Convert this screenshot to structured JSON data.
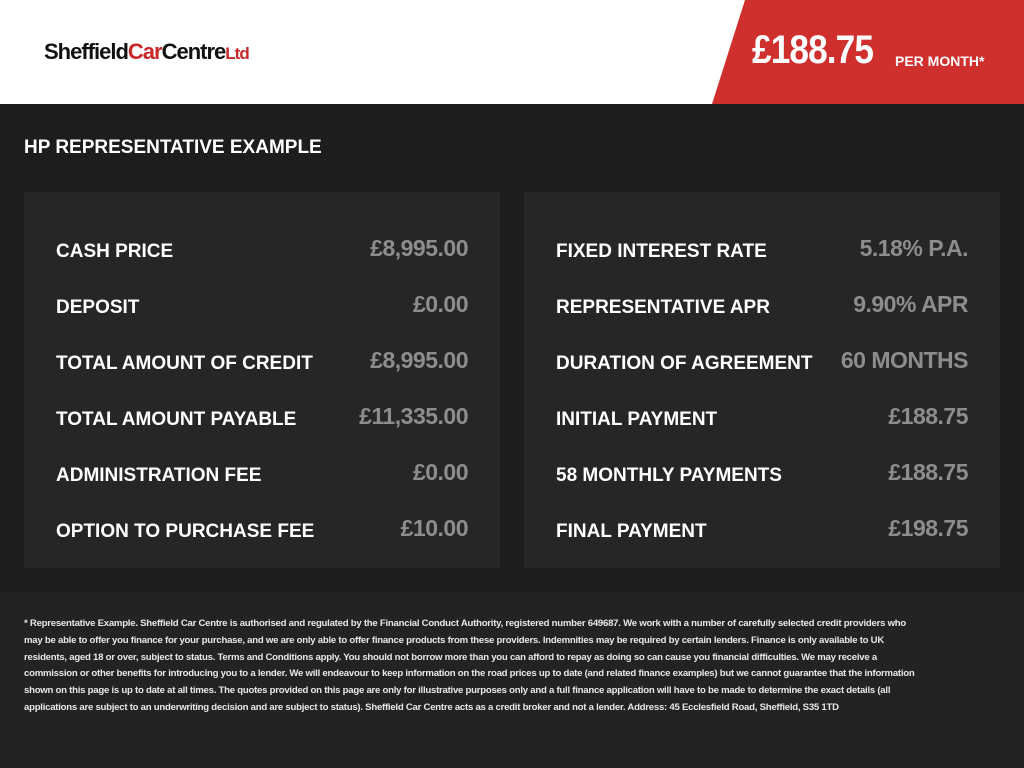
{
  "header": {
    "logo": {
      "part1": "Sheffield",
      "part2": "Car",
      "part3": "Centre",
      "part4": "Ltd"
    },
    "price": "£188.75",
    "per_month": "PER MONTH*"
  },
  "colors": {
    "accent": "#cf2f2d",
    "background": "#1d1d1d",
    "panel": "#262626",
    "value": "#8d8d8d"
  },
  "title": "HP REPRESENTATIVE EXAMPLE",
  "left": [
    {
      "label": "CASH PRICE",
      "value": "£8,995.00"
    },
    {
      "label": "DEPOSIT",
      "value": "£0.00"
    },
    {
      "label": "TOTAL AMOUNT OF CREDIT",
      "value": "£8,995.00"
    },
    {
      "label": "TOTAL AMOUNT PAYABLE",
      "value": "£11,335.00"
    },
    {
      "label": "ADMINISTRATION FEE",
      "value": "£0.00"
    },
    {
      "label": "OPTION TO PURCHASE FEE",
      "value": "£10.00"
    }
  ],
  "right": [
    {
      "label": "FIXED INTEREST RATE",
      "value": "5.18% P.A."
    },
    {
      "label": "REPRESENTATIVE APR",
      "value": "9.90% APR"
    },
    {
      "label": "DURATION OF AGREEMENT",
      "value": "60 MONTHS"
    },
    {
      "label": "INITIAL PAYMENT",
      "value": "£188.75"
    },
    {
      "label": "58 MONTHLY PAYMENTS",
      "value": "£188.75"
    },
    {
      "label": "FINAL PAYMENT",
      "value": "£198.75"
    }
  ],
  "disclaimer": "* Representative Example. Sheffield Car Centre is authorised and regulated by the Financial Conduct Authority, registered number 649687. We work with a number of carefully selected credit providers who may be able to offer you finance for your purchase, and we are only able to offer finance products from these providers. Indemnities may be required by certain lenders. Finance is only available to UK residents, aged 18 or over, subject to status. Terms and Conditions apply. You should not borrow more than you can afford to repay as doing so can cause you financial difficulties. We may receive a commission or other benefits for introducing you to a lender. We will endeavour to keep information on the road prices up to date (and related finance examples) but we cannot guarantee that the information shown on this page is up to date at all times. The quotes provided on this page are only for illustrative purposes only and a full finance application will have to be made to determine the exact details (all applications are subject to an underwriting decision and are subject to status). Sheffield Car Centre acts as a credit broker and not a lender. Address: 45 Ecclesfield Road, Sheffield, S35 1TD"
}
